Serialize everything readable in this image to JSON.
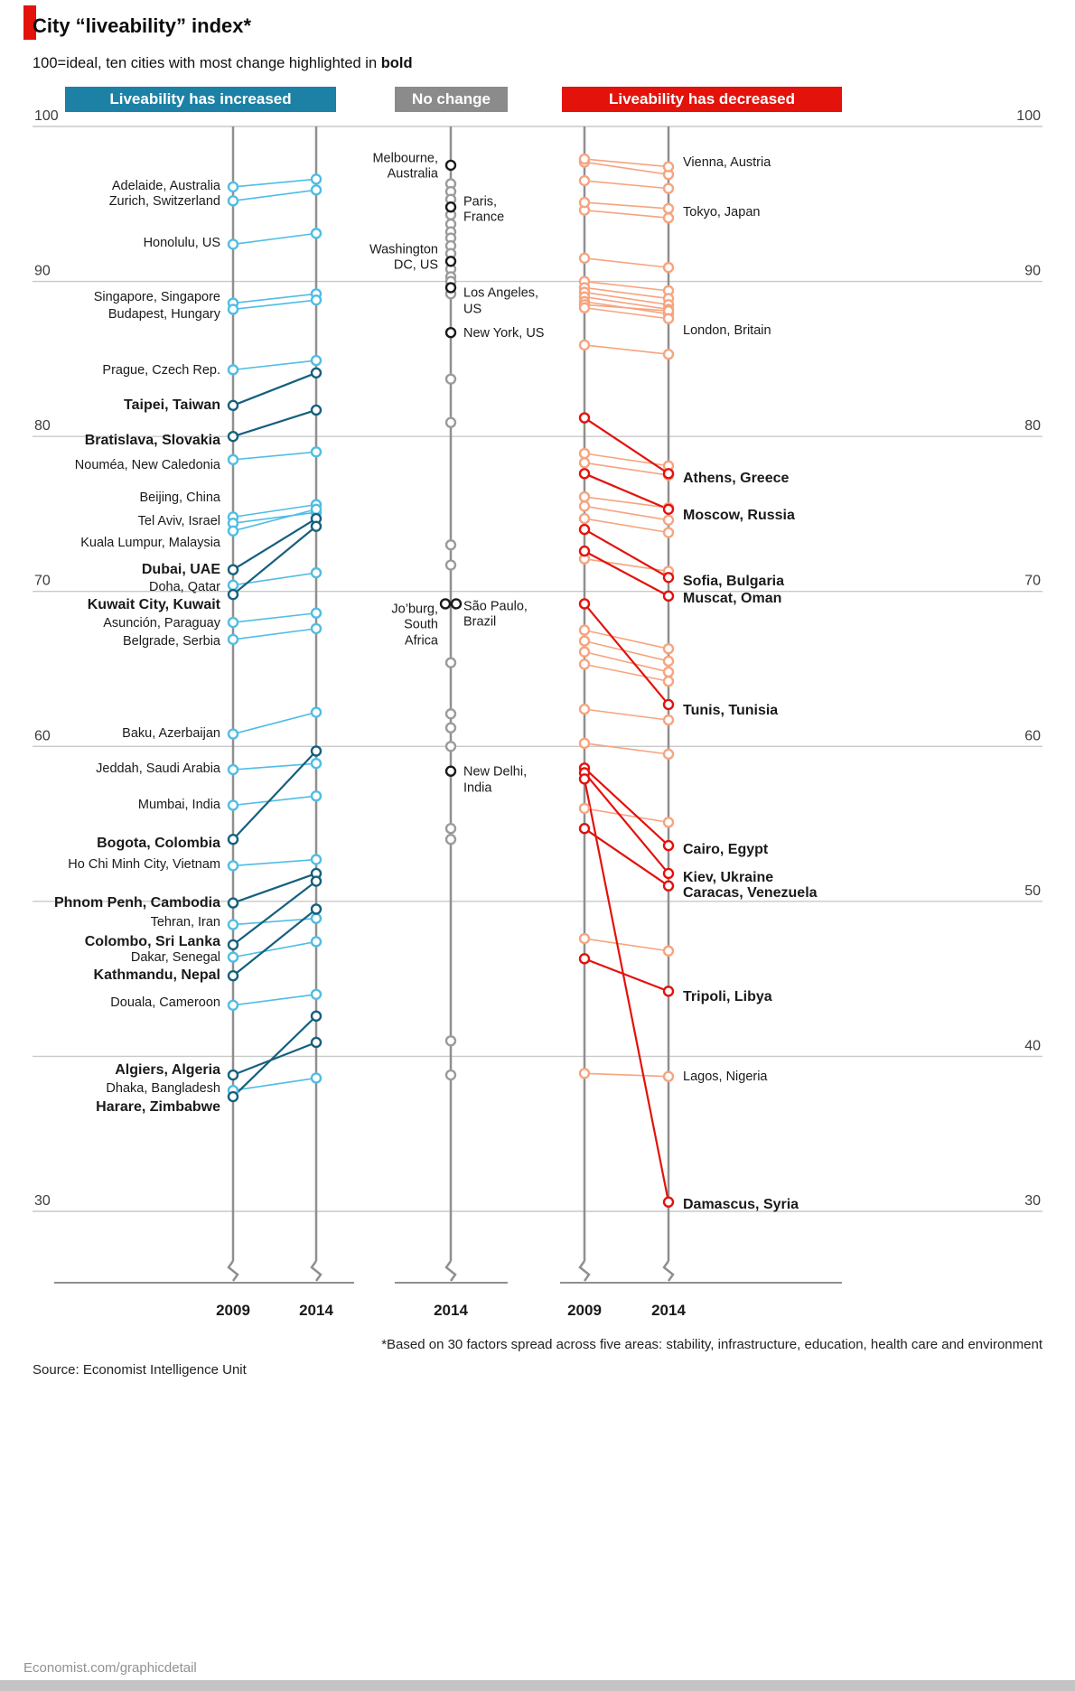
{
  "brand_color": "#e3120b",
  "header": {
    "title": "City “liveability” index*",
    "subtitle": "100=ideal, ten cities with most change highlighted in ",
    "subtitle_bold": "bold"
  },
  "footer": {
    "footnote": "*Based on 30 factors spread across five areas: stability, infrastructure, education, health care and environment",
    "source": "Source: Economist Intelligence Unit",
    "link": "Economist.com/graphicdetail"
  },
  "chart_data": {
    "type": "slope",
    "ylim": [
      30,
      100
    ],
    "gridlines": [
      100,
      90,
      80,
      70,
      60,
      50,
      40,
      30
    ],
    "left_axis_labels": [
      100,
      90,
      80,
      70,
      60,
      30
    ],
    "right_axis_labels": [
      100,
      90,
      80,
      70,
      60,
      50,
      40,
      30
    ],
    "colors": {
      "increase_light": "#4fbde4",
      "increase_bold": "#15607e",
      "decrease_light": "#f6a47f",
      "decrease_bold": "#e3120b",
      "neutral_light": "#9b9b9b",
      "neutral_bold": "#1a1a1a",
      "axis": "#8f8f8f",
      "grid": "#c9c9c9"
    },
    "panels": [
      {
        "id": "increased",
        "header": "Liveability has increased",
        "header_color": "#1d81a5",
        "years": [
          "2009",
          "2014"
        ],
        "cities": [
          {
            "name": "Adelaide, Australia",
            "v2009": 96.1,
            "v2014": 96.6,
            "bold": false,
            "label_at": 96.1
          },
          {
            "name": "Zurich, Switzerland",
            "v2009": 95.2,
            "v2014": 95.9,
            "bold": false,
            "label_at": 95.1
          },
          {
            "name": "Honolulu, US",
            "v2009": 92.4,
            "v2014": 93.1,
            "bold": false,
            "label_at": 92.4
          },
          {
            "name": "Singapore, Singapore",
            "v2009": 88.6,
            "v2014": 89.2,
            "bold": false,
            "label_at": 88.9
          },
          {
            "name": "Budapest, Hungary",
            "v2009": 88.2,
            "v2014": 88.8,
            "bold": false,
            "label_at": 87.8
          },
          {
            "name": "Prague, Czech Rep.",
            "v2009": 84.3,
            "v2014": 84.9,
            "bold": false,
            "label_at": 84.2
          },
          {
            "name": "Taipei, Taiwan",
            "v2009": 82.0,
            "v2014": 84.1,
            "bold": true,
            "label_at": 82.0
          },
          {
            "name": "Bratislava, Slovakia",
            "v2009": 80.0,
            "v2014": 81.7,
            "bold": true,
            "label_at": 79.7
          },
          {
            "name": "Nouméa, New Caledonia",
            "v2009": 78.5,
            "v2014": 79.0,
            "bold": false,
            "label_at": 78.1
          },
          {
            "name": "Beijing, China",
            "v2009": 74.8,
            "v2014": 75.6,
            "bold": false,
            "label_at": 76.0
          },
          {
            "name": "Tel Aviv, Israel",
            "v2009": 74.4,
            "v2014": 75.1,
            "bold": false,
            "label_at": 74.5
          },
          {
            "name": "Kuala Lumpur, Malaysia",
            "v2009": 73.9,
            "v2014": 75.3,
            "bold": false,
            "label_at": 73.1
          },
          {
            "name": "Dubai, UAE",
            "v2009": 71.4,
            "v2014": 74.7,
            "bold": true,
            "label_at": 71.4
          },
          {
            "name": "Doha, Qatar",
            "v2009": 70.4,
            "v2014": 71.2,
            "bold": false,
            "label_at": 70.2
          },
          {
            "name": "Kuwait City, Kuwait",
            "v2009": 69.8,
            "v2014": 74.2,
            "bold": true,
            "label_at": 69.1
          },
          {
            "name": "Asunción, Paraguay",
            "v2009": 68.0,
            "v2014": 68.6,
            "bold": false,
            "label_at": 67.9
          },
          {
            "name": "Belgrade, Serbia",
            "v2009": 66.9,
            "v2014": 67.6,
            "bold": false,
            "label_at": 66.7
          },
          {
            "name": "Baku, Azerbaijan",
            "v2009": 60.8,
            "v2014": 62.2,
            "bold": false,
            "label_at": 60.8
          },
          {
            "name": "Jeddah, Saudi Arabia",
            "v2009": 58.5,
            "v2014": 58.9,
            "bold": false,
            "label_at": 58.5
          },
          {
            "name": "Mumbai, India",
            "v2009": 56.2,
            "v2014": 56.8,
            "bold": false,
            "label_at": 56.2
          },
          {
            "name": "Bogota, Colombia",
            "v2009": 54.0,
            "v2014": 59.7,
            "bold": true,
            "label_at": 53.7
          },
          {
            "name": "Ho Chi Minh City, Vietnam",
            "v2009": 52.3,
            "v2014": 52.7,
            "bold": false,
            "label_at": 52.3
          },
          {
            "name": "Phnom Penh, Cambodia",
            "v2009": 49.9,
            "v2014": 51.8,
            "bold": true,
            "label_at": 49.9
          },
          {
            "name": "Tehran, Iran",
            "v2009": 48.5,
            "v2014": 48.9,
            "bold": false,
            "label_at": 48.6
          },
          {
            "name": "Colombo, Sri Lanka",
            "v2009": 47.2,
            "v2014": 51.3,
            "bold": true,
            "label_at": 47.4
          },
          {
            "name": "Dakar, Senegal",
            "v2009": 46.4,
            "v2014": 47.4,
            "bold": false,
            "label_at": 46.3
          },
          {
            "name": "Kathmandu, Nepal",
            "v2009": 45.2,
            "v2014": 49.5,
            "bold": true,
            "label_at": 45.2
          },
          {
            "name": "Douala, Cameroon",
            "v2009": 43.3,
            "v2014": 44.0,
            "bold": false,
            "label_at": 43.4
          },
          {
            "name": "Algiers, Algeria",
            "v2009": 38.8,
            "v2014": 40.9,
            "bold": true,
            "label_at": 39.1
          },
          {
            "name": "Dhaka, Bangladesh",
            "v2009": 37.8,
            "v2014": 38.6,
            "bold": false,
            "label_at": 37.9
          },
          {
            "name": "Harare, Zimbabwe",
            "v2009": 37.4,
            "v2014": 42.6,
            "bold": true,
            "label_at": 36.7
          }
        ]
      },
      {
        "id": "no_change",
        "header": "No change",
        "header_color": "#8b8b8b",
        "years": [
          "2014"
        ],
        "cities": [
          {
            "name": "Melbourne, Australia",
            "label": "Melbourne,\nAustralia",
            "value": 97.5,
            "side": "left",
            "label_at": 97.4
          },
          {
            "name": "Paris, France",
            "label": "Paris,\nFrance",
            "value": 94.8,
            "side": "right",
            "label_at": 94.6
          },
          {
            "name": "Washington DC, US",
            "label": "Washington\nDC, US",
            "value": 91.3,
            "side": "left",
            "label_at": 91.5
          },
          {
            "name": "Los Angeles, US",
            "label": "Los Angeles,\nUS",
            "value": 89.6,
            "side": "right",
            "label_at": 88.7
          },
          {
            "name": "New York, US",
            "label": "New York, US",
            "value": 86.7,
            "side": "right",
            "label_at": 86.6
          },
          {
            "name": "Jo’burg, South Africa",
            "label": "Jo’burg,\nSouth\nAfrica",
            "value": 69.2,
            "side": "left",
            "label_at": 67.8,
            "dx": -6
          },
          {
            "name": "São Paulo, Brazil",
            "label": "São Paulo,\nBrazil",
            "value": 69.2,
            "side": "right",
            "label_at": 68.5,
            "dx": 6
          },
          {
            "name": "New Delhi, India",
            "label": "New Delhi,\nIndia",
            "value": 58.4,
            "side": "right",
            "label_at": 57.8
          }
        ],
        "others": [
          96.3,
          95.8,
          95.3,
          94.3,
          93.7,
          93.2,
          92.8,
          92.3,
          91.8,
          90.8,
          90.3,
          90.0,
          89.2,
          83.7,
          80.9,
          73.0,
          71.7,
          65.4,
          62.1,
          61.2,
          60.0,
          54.7,
          54.0,
          41.0,
          38.8
        ]
      },
      {
        "id": "decreased",
        "header": "Liveability has decreased",
        "header_color": "#e3120b",
        "years": [
          "2009",
          "2014"
        ],
        "cities": [
          {
            "name": "Vienna, Austria",
            "v2009": 97.9,
            "v2014": 97.4,
            "bold": false,
            "label_at": 97.6
          },
          {
            "name": "Tokyo, Japan",
            "v2009": 95.1,
            "v2014": 94.7,
            "bold": false,
            "label_at": 94.4
          },
          {
            "name": "London, Britain",
            "v2009": 88.3,
            "v2014": 87.6,
            "bold": false,
            "label_at": 86.8
          },
          {
            "name": "Athens, Greece",
            "v2009": 81.2,
            "v2014": 77.6,
            "bold": true,
            "label_at": 77.3
          },
          {
            "name": "Moscow, Russia",
            "v2009": 77.6,
            "v2014": 75.3,
            "bold": true,
            "label_at": 74.9
          },
          {
            "name": "Sofia, Bulgaria",
            "v2009": 74.0,
            "v2014": 70.9,
            "bold": true,
            "label_at": 70.6
          },
          {
            "name": "Muscat, Oman",
            "v2009": 72.6,
            "v2014": 69.7,
            "bold": true,
            "label_at": 69.5
          },
          {
            "name": "Tunis, Tunisia",
            "v2009": 69.2,
            "v2014": 62.7,
            "bold": true,
            "label_at": 62.3
          },
          {
            "name": "Cairo, Egypt",
            "v2009": 58.6,
            "v2014": 53.6,
            "bold": true,
            "label_at": 53.3
          },
          {
            "name": "Kiev, Ukraine",
            "v2009": 58.3,
            "v2014": 51.8,
            "bold": true,
            "label_at": 51.5
          },
          {
            "name": "Caracas, Venezuela",
            "v2009": 54.7,
            "v2014": 51.0,
            "bold": true,
            "label_at": 50.5
          },
          {
            "name": "Tripoli, Libya",
            "v2009": 46.3,
            "v2014": 44.2,
            "bold": true,
            "label_at": 43.8
          },
          {
            "name": "Lagos, Nigeria",
            "v2009": 38.9,
            "v2014": 38.7,
            "bold": false,
            "label_at": 38.6
          },
          {
            "name": "Damascus, Syria",
            "v2009": 57.9,
            "v2014": 30.6,
            "bold": true,
            "label_at": 30.4
          }
        ],
        "others": [
          [
            97.7,
            96.9
          ],
          [
            96.5,
            96.0
          ],
          [
            94.6,
            94.1
          ],
          [
            91.5,
            90.9
          ],
          [
            90.0,
            89.4
          ],
          [
            89.6,
            88.9
          ],
          [
            89.3,
            88.5
          ],
          [
            89.0,
            88.2
          ],
          [
            88.7,
            87.9
          ],
          [
            88.5,
            88.1
          ],
          [
            85.9,
            85.3
          ],
          [
            78.9,
            78.1
          ],
          [
            78.3,
            77.5
          ],
          [
            76.1,
            75.4
          ],
          [
            75.5,
            74.6
          ],
          [
            74.7,
            73.8
          ],
          [
            72.1,
            71.3
          ],
          [
            67.5,
            66.3
          ],
          [
            66.8,
            65.5
          ],
          [
            66.1,
            64.8
          ],
          [
            65.3,
            64.2
          ],
          [
            62.4,
            61.7
          ],
          [
            60.2,
            59.5
          ],
          [
            56.0,
            55.1
          ],
          [
            47.6,
            46.8
          ]
        ]
      }
    ]
  }
}
